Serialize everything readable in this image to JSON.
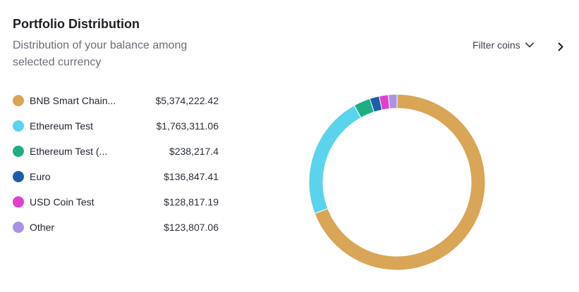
{
  "header": {
    "title": "Portfolio Distribution",
    "subtitle": "Distribution of your balance among selected currency",
    "filter_label": "Filter coins"
  },
  "icons": {
    "filter": "chevron-down-icon",
    "next": "chevron-right-icon"
  },
  "chart_data": {
    "type": "pie",
    "variant": "donut",
    "title": "Portfolio Distribution",
    "series": [
      {
        "name": "BNB Smart Chain...",
        "label": "$5,374,222.42",
        "value": 5374222.42,
        "color": "#d9a556"
      },
      {
        "name": "Ethereum Test",
        "label": "$1,763,311.06",
        "value": 1763311.06,
        "color": "#5bd3ec"
      },
      {
        "name": "Ethereum Test (...",
        "label": "$238,217.4",
        "value": 238217.4,
        "color": "#1fad84"
      },
      {
        "name": "Euro",
        "label": "$136,847.41",
        "value": 136847.41,
        "color": "#1c5ea8"
      },
      {
        "name": "USD Coin Test",
        "label": "$128,817.19",
        "value": 128817.19,
        "color": "#e03fcf"
      },
      {
        "name": "Other",
        "label": "$123,807.06",
        "value": 123807.06,
        "color": "#a893e6"
      }
    ]
  }
}
